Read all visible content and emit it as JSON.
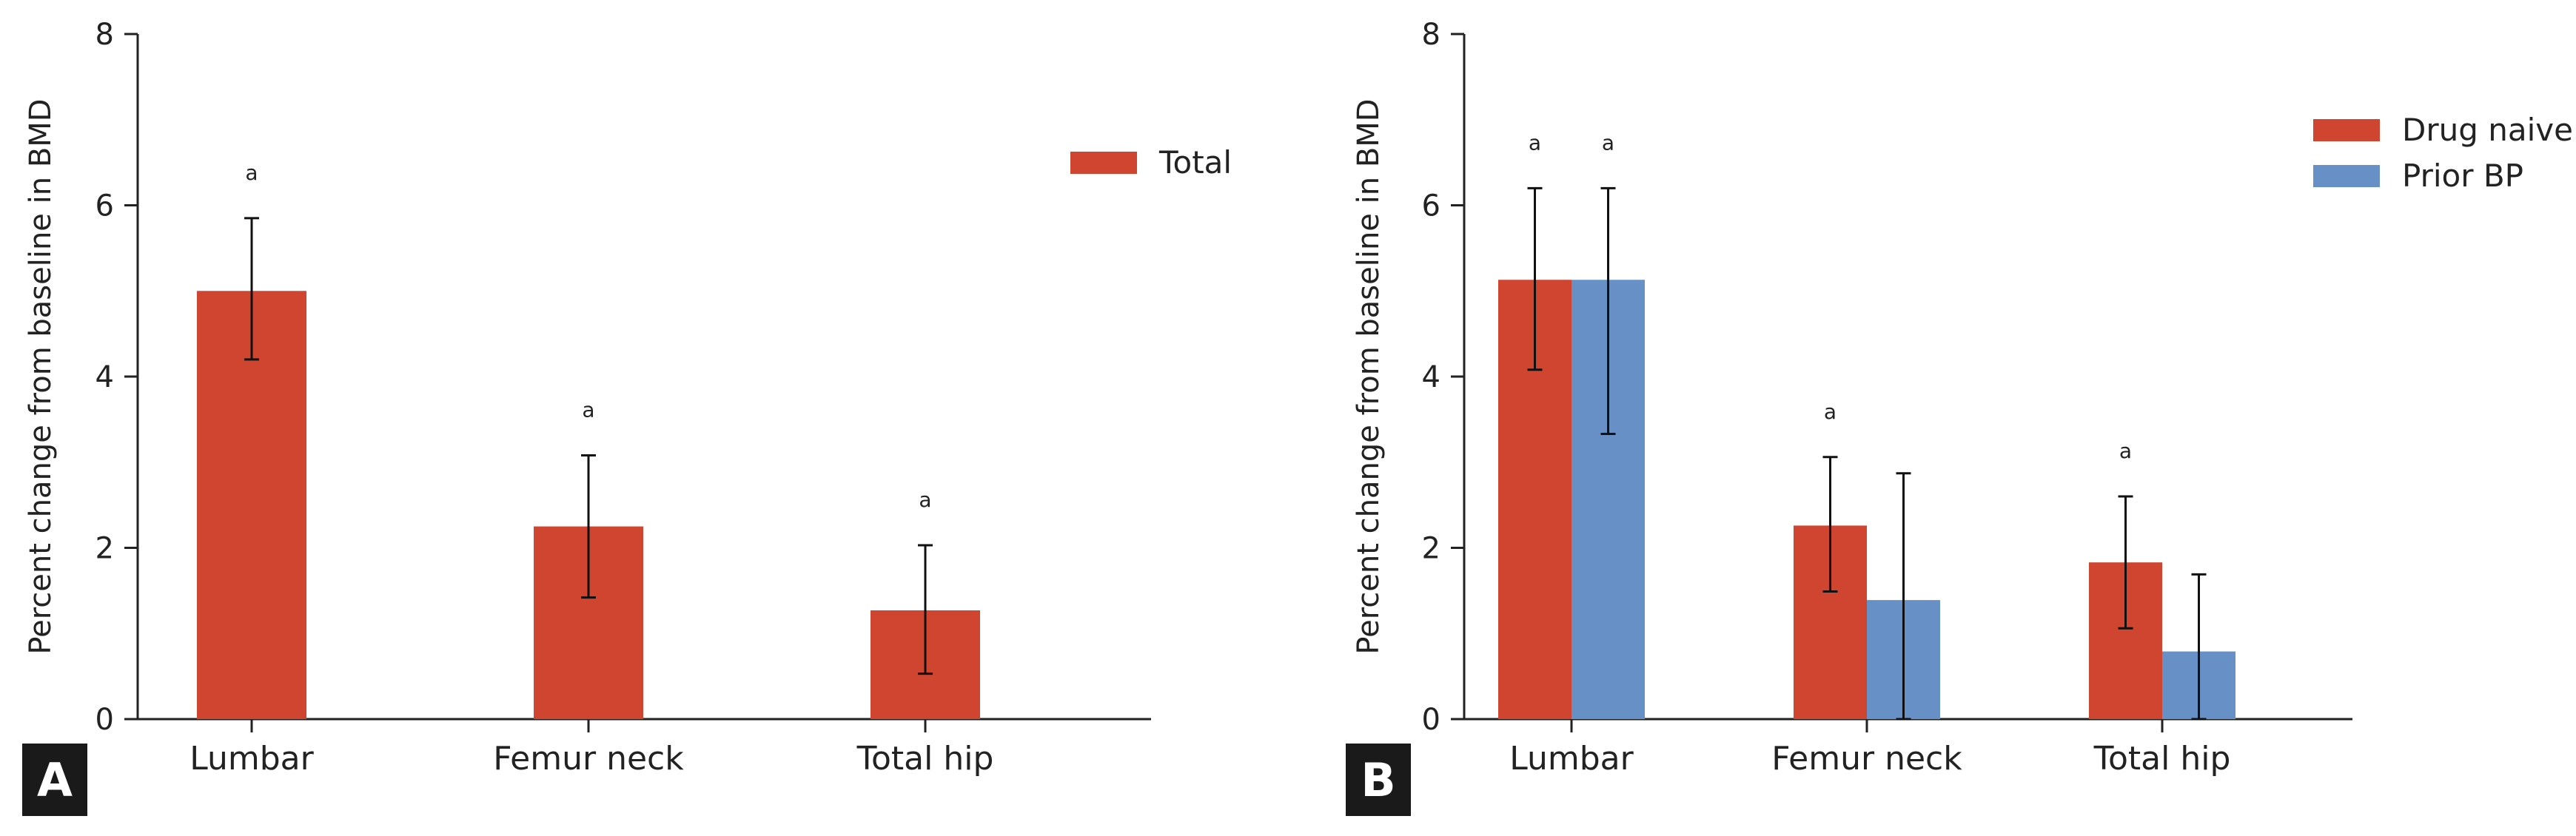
{
  "chart_data": [
    {
      "type": "bar",
      "panel_label": "A",
      "categories": [
        "Lumbar",
        "Femur neck",
        "Total hip"
      ],
      "ylabel": "Percent change from baseline in BMD",
      "ylim": [
        0,
        8
      ],
      "yticks": [
        0,
        2,
        4,
        6,
        8
      ],
      "legend_position": "top-right",
      "series": [
        {
          "name": "Total",
          "color": "#d04530",
          "values": [
            5.0,
            2.25,
            1.27
          ],
          "err_low": [
            4.2,
            1.42,
            0.53
          ],
          "err_high": [
            5.85,
            3.08,
            2.03
          ],
          "annotations": [
            "a",
            "a",
            "a"
          ]
        }
      ]
    },
    {
      "type": "bar",
      "panel_label": "B",
      "categories": [
        "Lumbar",
        "Femur neck",
        "Total hip"
      ],
      "ylabel": "Percent change from baseline in BMD",
      "ylim": [
        0,
        8
      ],
      "yticks": [
        0,
        2,
        4,
        6,
        8
      ],
      "legend_position": "top-right",
      "series": [
        {
          "name": "Drug naive",
          "color": "#d04530",
          "values": [
            5.13,
            2.26,
            1.83
          ],
          "err_low": [
            4.08,
            1.49,
            1.06
          ],
          "err_high": [
            6.2,
            3.06,
            2.6
          ],
          "annotations": [
            "a",
            "a",
            "a"
          ]
        },
        {
          "name": "Prior BP",
          "color": "#6690c6",
          "values": [
            5.13,
            1.39,
            0.79
          ],
          "err_low": [
            3.33,
            0.0,
            0.0
          ],
          "err_high": [
            6.2,
            2.87,
            1.69
          ],
          "annotations": [
            "a",
            "",
            ""
          ]
        }
      ]
    }
  ]
}
